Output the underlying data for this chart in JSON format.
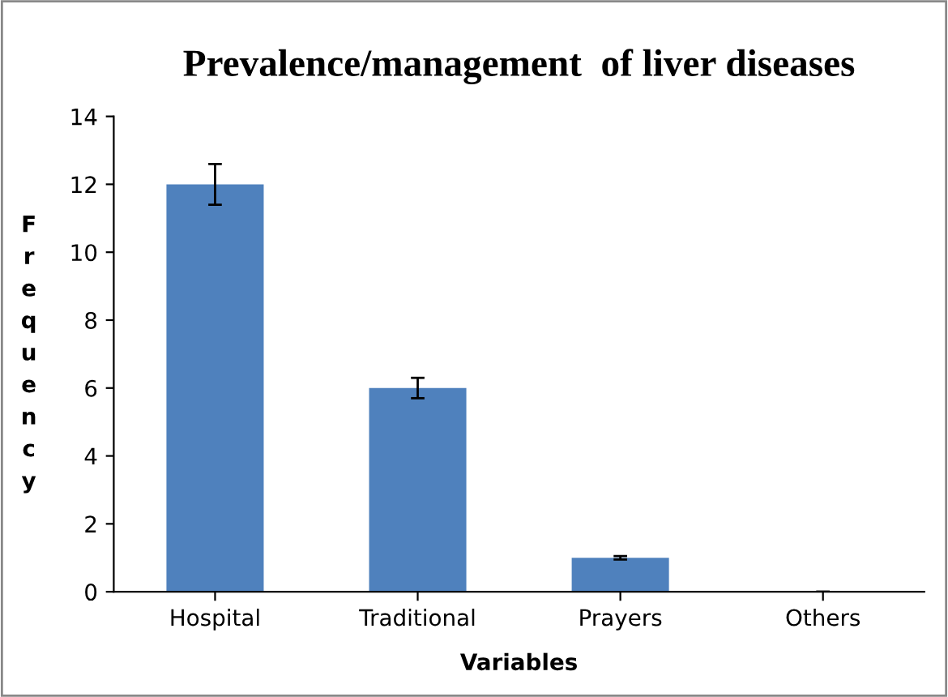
{
  "chart_data": {
    "type": "bar",
    "title": "Prevalence/management  of liver diseases",
    "xlabel": "Variables",
    "ylabel": "Frequency",
    "categories": [
      "Hospital",
      "Traditional",
      "Prayers",
      "Others"
    ],
    "values": [
      12,
      6,
      1,
      0
    ],
    "errors": [
      0.6,
      0.3,
      0.05,
      null
    ],
    "color": "#4f81bd",
    "ylim": [
      0,
      14
    ],
    "yticks": [
      0,
      2,
      4,
      6,
      8,
      10,
      12,
      14
    ],
    "grid": false,
    "legend": false
  }
}
